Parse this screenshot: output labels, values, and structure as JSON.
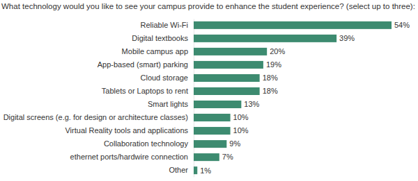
{
  "chart_data": {
    "type": "bar",
    "title": "What technology would you like to see your campus provide to enhance the student experience? (select up to three):",
    "categories": [
      "Reliable Wi-Fi",
      "Digital textbooks",
      "Mobile campus app",
      "App-based (smart) parking",
      "Cloud storage",
      "Tablets or Laptops to rent",
      "Smart lights",
      "Digital screens (e.g. for design or architecture classes)",
      "Virtual Reality tools and applications",
      "Collaboration technology",
      "ethernet ports/hardwire connection",
      "Other"
    ],
    "values": [
      54,
      39,
      20,
      19,
      18,
      18,
      13,
      10,
      10,
      9,
      7,
      1
    ],
    "value_labels": [
      "54%",
      "39%",
      "20%",
      "19%",
      "18%",
      "18%",
      "13%",
      "10%",
      "10%",
      "9%",
      "7%",
      "1%"
    ],
    "color": "#3d8b70",
    "orientation": "horizontal",
    "data_labels": true,
    "tick_labels": "y"
  }
}
